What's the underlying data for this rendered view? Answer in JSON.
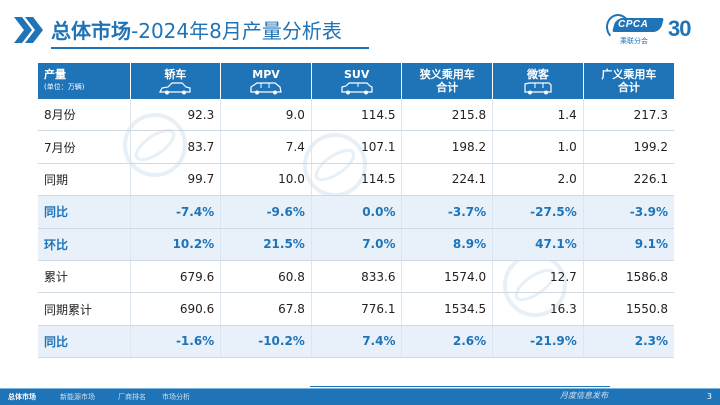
{
  "header": {
    "title_bold": "总体市场",
    "title_rest": "-2024年8月产量分析表",
    "logo_text": "CPCA",
    "logo_sub": "乘联分会",
    "logo_badge": "30"
  },
  "table": {
    "header": {
      "first_line1": "产量",
      "first_line2": "(单位：万辆)",
      "columns": [
        {
          "line1": "轿车",
          "line2": "",
          "icon": "sedan-car-icon"
        },
        {
          "line1": "MPV",
          "line2": "",
          "icon": "mpv-car-icon"
        },
        {
          "line1": "SUV",
          "line2": "",
          "icon": "suv-car-icon"
        },
        {
          "line1": "狭义乘用车",
          "line2": "合计",
          "icon": ""
        },
        {
          "line1": "微客",
          "line2": "",
          "icon": "minivan-icon"
        },
        {
          "line1": "广义乘用车",
          "line2": "合计",
          "icon": ""
        }
      ]
    },
    "rows": [
      {
        "label": "8月份",
        "values": [
          "92.3",
          "9.0",
          "114.5",
          "215.8",
          "1.4",
          "217.3"
        ],
        "highlight": false
      },
      {
        "label": "7月份",
        "values": [
          "83.7",
          "7.4",
          "107.1",
          "198.2",
          "1.0",
          "199.2"
        ],
        "highlight": false
      },
      {
        "label": "同期",
        "values": [
          "99.7",
          "10.0",
          "114.5",
          "224.1",
          "2.0",
          "226.1"
        ],
        "highlight": false
      },
      {
        "label": "同比",
        "values": [
          "-7.4%",
          "-9.6%",
          "0.0%",
          "-3.7%",
          "-27.5%",
          "-3.9%"
        ],
        "highlight": true
      },
      {
        "label": "环比",
        "values": [
          "10.2%",
          "21.5%",
          "7.0%",
          "8.9%",
          "47.1%",
          "9.1%"
        ],
        "highlight": true
      },
      {
        "label": "累计",
        "values": [
          "679.6",
          "60.8",
          "833.6",
          "1574.0",
          "12.7",
          "1586.8"
        ],
        "highlight": false
      },
      {
        "label": "同期累计",
        "values": [
          "690.6",
          "67.8",
          "776.1",
          "1534.5",
          "16.3",
          "1550.8"
        ],
        "highlight": false
      },
      {
        "label": "同比",
        "values": [
          "-1.6%",
          "-10.2%",
          "7.4%",
          "2.6%",
          "-21.9%",
          "2.3%"
        ],
        "highlight": true
      }
    ]
  },
  "footer": {
    "tabs": [
      "总体市场",
      "新能源市场",
      "厂商排名",
      "市场分析"
    ],
    "active_tab": 0,
    "tagline": "月度信息发布",
    "page_number": "3"
  },
  "colors": {
    "brand_blue": "#1f73b7",
    "highlight_row_bg": "#e8f1f9",
    "logo_accent": "#e04c2a"
  }
}
